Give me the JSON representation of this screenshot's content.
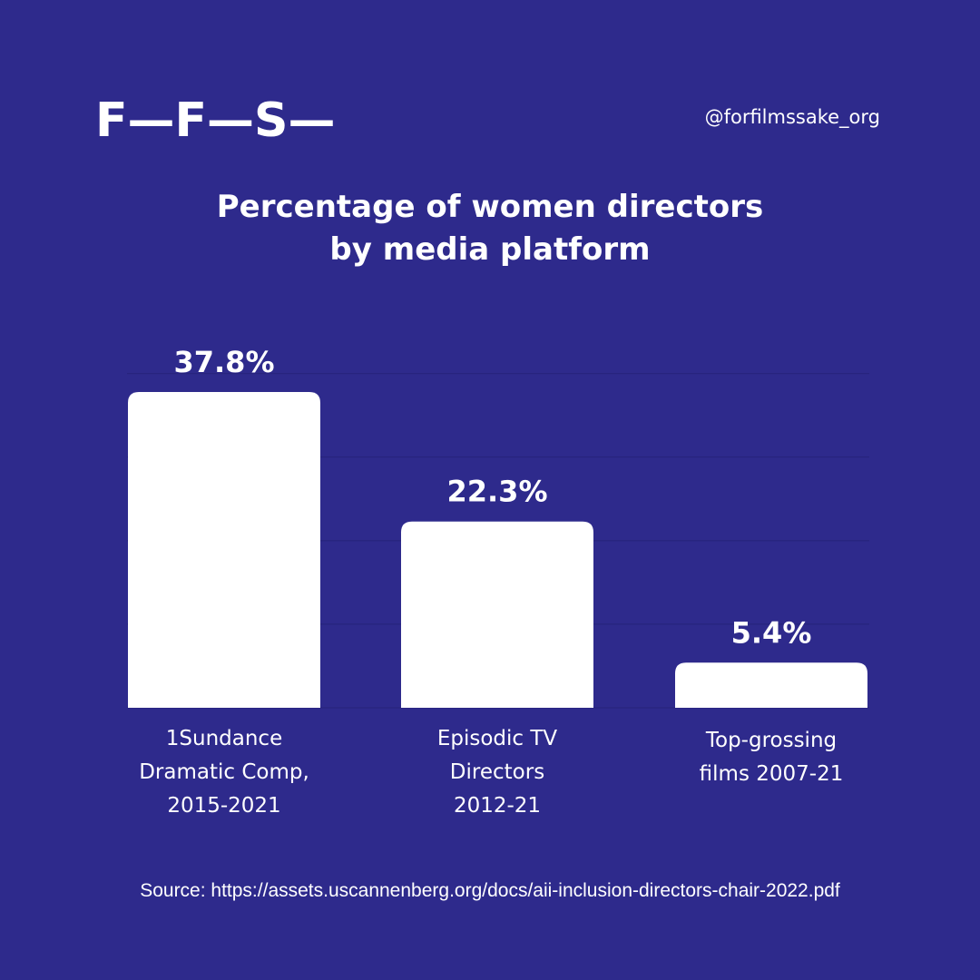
{
  "brand": {
    "logo_text": "F—F—S—",
    "handle": "@forfilmssake_org"
  },
  "title": {
    "line1": "Percentage of women directors",
    "line2": "by media platform"
  },
  "chart_data": {
    "type": "bar",
    "title": "Percentage of women directors by media platform",
    "xlabel": "",
    "ylabel": "",
    "categories": [
      "1Sundance Dramatic Comp, 2015-2021",
      "Episodic TV Directors 2012-21",
      "Top-grossing films 2007-21"
    ],
    "category_lines": [
      [
        "1Sundance",
        "Dramatic Comp,",
        "2015-2021"
      ],
      [
        "Episodic TV",
        "Directors",
        "2012-21"
      ],
      [
        "Top-grossing",
        "films 2007-21"
      ]
    ],
    "values": [
      37.8,
      22.3,
      5.4
    ],
    "value_labels": [
      "37.8%",
      "22.3%",
      "5.4%"
    ],
    "ylim": [
      0,
      40
    ],
    "grid": true,
    "legend": "none",
    "colors": {
      "background": "#2e2a8c",
      "bar": "#ffffff",
      "grid": "#26237a",
      "text": "#ffffff"
    }
  },
  "source_text": "Source: https://assets.uscannenberg.org/docs/aii-inclusion-directors-chair-2022.pdf"
}
